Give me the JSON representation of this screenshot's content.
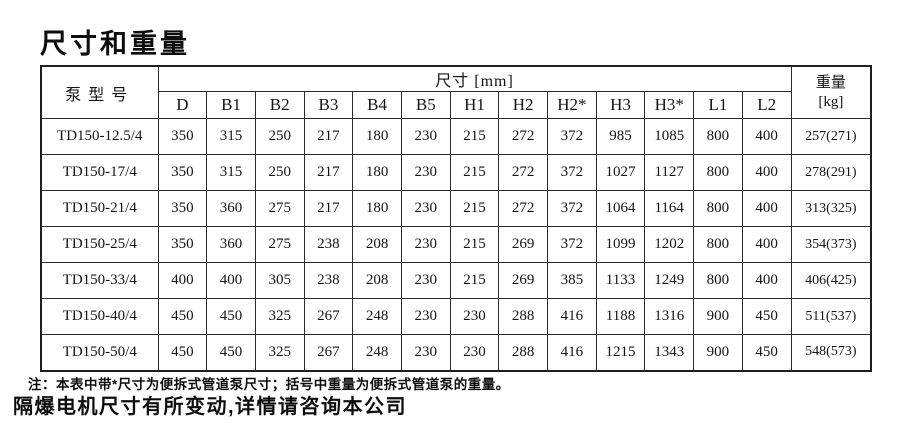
{
  "page": {
    "title": "尺寸和重量"
  },
  "table": {
    "header": {
      "pump_model": "泵型号",
      "dimensions_group": "尺寸 [mm]",
      "weight_line1": "重量",
      "weight_line2": "[kg]",
      "dimension_columns": [
        "D",
        "B1",
        "B2",
        "B3",
        "B4",
        "B5",
        "H1",
        "H2",
        "H2*",
        "H3",
        "H3*",
        "L1",
        "L2"
      ]
    },
    "rows": [
      {
        "model": "TD150-12.5/4",
        "values": [
          350,
          315,
          250,
          217,
          180,
          230,
          215,
          272,
          372,
          985,
          1085,
          800,
          400
        ],
        "weight": "257(271)"
      },
      {
        "model": "TD150-17/4",
        "values": [
          350,
          315,
          250,
          217,
          180,
          230,
          215,
          272,
          372,
          1027,
          1127,
          800,
          400
        ],
        "weight": "278(291)"
      },
      {
        "model": "TD150-21/4",
        "values": [
          350,
          360,
          275,
          217,
          180,
          230,
          215,
          272,
          372,
          1064,
          1164,
          800,
          400
        ],
        "weight": "313(325)"
      },
      {
        "model": "TD150-25/4",
        "values": [
          350,
          360,
          275,
          238,
          208,
          230,
          215,
          269,
          372,
          1099,
          1202,
          800,
          400
        ],
        "weight": "354(373)"
      },
      {
        "model": "TD150-33/4",
        "values": [
          400,
          400,
          305,
          238,
          208,
          230,
          215,
          269,
          385,
          1133,
          1249,
          800,
          400
        ],
        "weight": "406(425)"
      },
      {
        "model": "TD150-40/4",
        "values": [
          450,
          450,
          325,
          267,
          248,
          230,
          230,
          288,
          416,
          1188,
          1316,
          900,
          450
        ],
        "weight": "511(537)"
      },
      {
        "model": "TD150-50/4",
        "values": [
          450,
          450,
          325,
          267,
          248,
          230,
          230,
          288,
          416,
          1215,
          1343,
          900,
          450
        ],
        "weight": "548(573)"
      }
    ]
  },
  "notes": {
    "line1": "注：本表中带*尺寸为便拆式管道泵尺寸；括号中重量为便拆式管道泵的重量。",
    "line2": "隔爆电机尺寸有所变动,详情请咨询本公司"
  },
  "colors": {
    "text": "#141414",
    "border": "#2a2a2a",
    "background": "#ffffff"
  }
}
